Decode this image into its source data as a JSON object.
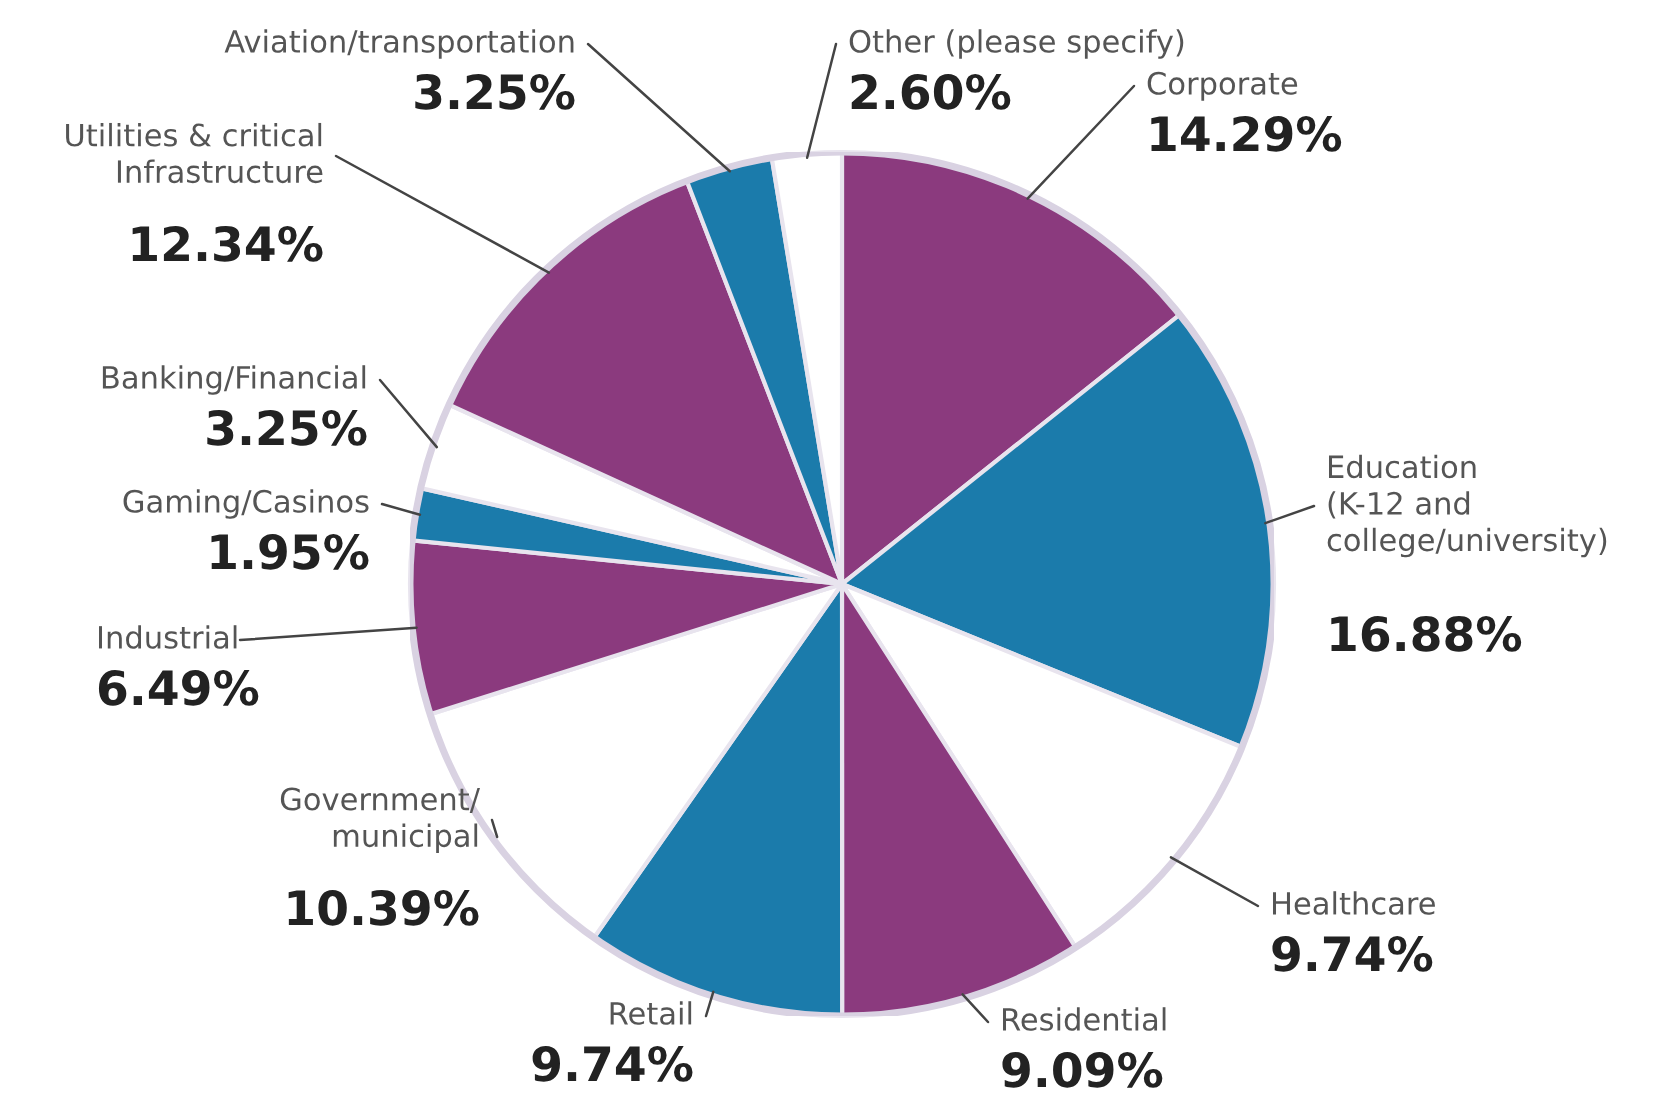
{
  "chart_data": {
    "type": "pie",
    "categories": [
      "Corporate",
      "Education\n(K-12 and\ncollege/university)",
      "Healthcare",
      "Residential",
      "Retail",
      "Government/\nmunicipal",
      "Industrial",
      "Gaming/Casinos",
      "Banking/Financial",
      "Utilities & critical\nInfrastructure",
      "Aviation/transportation",
      "Other (please specify)"
    ],
    "values": [
      14.29,
      16.88,
      9.74,
      9.09,
      9.74,
      10.39,
      6.49,
      1.95,
      3.25,
      12.34,
      3.25,
      2.6
    ],
    "value_labels": [
      "14.29%",
      "16.88%",
      "9.74%",
      "9.09%",
      "9.74%",
      "10.39%",
      "6.49%",
      "1.95%",
      "3.25%",
      "12.34%",
      "3.25%",
      "2.60%"
    ],
    "colors": [
      "#8b3a7e",
      "#1b7bab",
      "#ffffff",
      "#8b3a7e",
      "#1b7bab",
      "#ffffff",
      "#8b3a7e",
      "#1b7bab",
      "#ffffff",
      "#8b3a7e",
      "#1b7bab",
      "#ffffff"
    ]
  }
}
